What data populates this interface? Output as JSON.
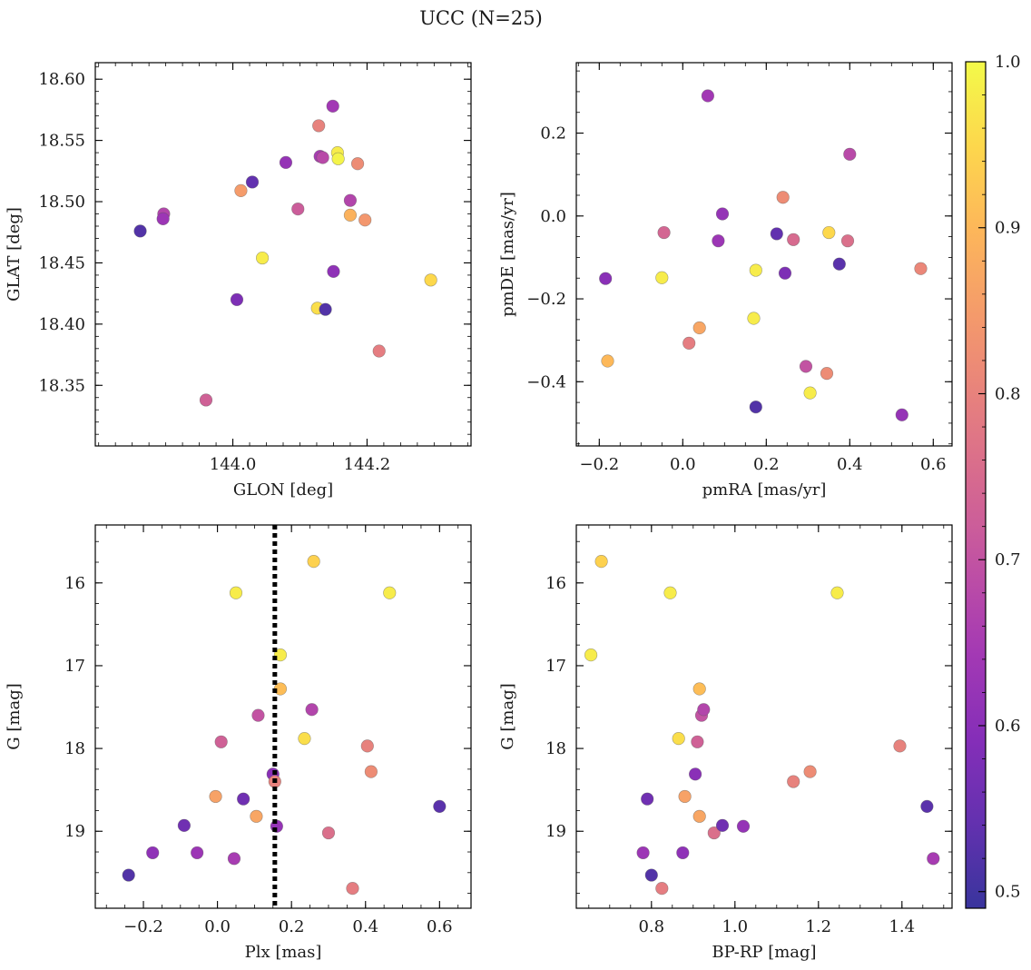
{
  "figure": {
    "title": "UCC (N=25)"
  },
  "colorbar": {
    "vmin": 0.49,
    "vmax": 1.0,
    "colormap": "plasma",
    "ticks": [
      0.5,
      0.6,
      0.7,
      0.8,
      0.9,
      1.0
    ],
    "tick_labels": [
      "0.5",
      "0.6",
      "0.7",
      "0.8",
      "0.9",
      "1.0"
    ]
  },
  "chart_data": [
    {
      "type": "scatter",
      "id": "glon-glat",
      "xlabel": "GLON [deg]",
      "ylabel": "GLAT [deg]",
      "xlim": [
        143.795,
        144.355
      ],
      "ylim": [
        18.3005,
        18.6135
      ],
      "x_invert": false,
      "y_invert": false,
      "xticks": [
        144.0,
        144.2
      ],
      "xtick_labels": [
        "144.0",
        "144.2"
      ],
      "x_minor_step": 0.025,
      "yticks": [
        18.35,
        18.4,
        18.45,
        18.5,
        18.55,
        18.6
      ],
      "ytick_labels": [
        "18.35",
        "18.40",
        "18.45",
        "18.50",
        "18.55",
        "18.60"
      ],
      "y_minor_step": 0.01,
      "vline": null,
      "points": [
        {
          "x": 143.862,
          "y": 18.476,
          "c": 0.52
        },
        {
          "x": 143.897,
          "y": 18.49,
          "c": 0.67
        },
        {
          "x": 143.896,
          "y": 18.486,
          "c": 0.63
        },
        {
          "x": 143.96,
          "y": 18.338,
          "c": 0.73
        },
        {
          "x": 144.006,
          "y": 18.42,
          "c": 0.58
        },
        {
          "x": 144.012,
          "y": 18.509,
          "c": 0.85
        },
        {
          "x": 144.029,
          "y": 18.516,
          "c": 0.54
        },
        {
          "x": 144.044,
          "y": 18.454,
          "c": 0.98
        },
        {
          "x": 144.079,
          "y": 18.532,
          "c": 0.62
        },
        {
          "x": 144.097,
          "y": 18.494,
          "c": 0.72
        },
        {
          "x": 144.128,
          "y": 18.562,
          "c": 0.8
        },
        {
          "x": 144.13,
          "y": 18.537,
          "c": 0.65
        },
        {
          "x": 144.134,
          "y": 18.536,
          "c": 0.68
        },
        {
          "x": 144.126,
          "y": 18.413,
          "c": 0.96
        },
        {
          "x": 144.138,
          "y": 18.412,
          "c": 0.52
        },
        {
          "x": 144.149,
          "y": 18.578,
          "c": 0.64
        },
        {
          "x": 144.15,
          "y": 18.443,
          "c": 0.61
        },
        {
          "x": 144.156,
          "y": 18.54,
          "c": 0.98
        },
        {
          "x": 144.157,
          "y": 18.535,
          "c": 0.99
        },
        {
          "x": 144.175,
          "y": 18.501,
          "c": 0.67
        },
        {
          "x": 144.175,
          "y": 18.489,
          "c": 0.89
        },
        {
          "x": 144.186,
          "y": 18.531,
          "c": 0.82
        },
        {
          "x": 144.197,
          "y": 18.485,
          "c": 0.84
        },
        {
          "x": 144.218,
          "y": 18.378,
          "c": 0.79
        },
        {
          "x": 144.295,
          "y": 18.436,
          "c": 0.95
        }
      ]
    },
    {
      "type": "scatter",
      "id": "pmra-pmde",
      "xlabel": "pmRA [mas/yr]",
      "ylabel": "pmDE [mas/yr]",
      "xlim": [
        -0.255,
        0.645
      ],
      "ylim": [
        -0.555,
        0.37
      ],
      "x_invert": false,
      "y_invert": false,
      "xticks": [
        -0.2,
        0.0,
        0.2,
        0.4,
        0.6
      ],
      "xtick_labels": [
        "−0.2",
        "0.0",
        "0.2",
        "0.4",
        "0.6"
      ],
      "x_minor_step": 0.05,
      "yticks": [
        -0.4,
        -0.2,
        0.0,
        0.2
      ],
      "ytick_labels": [
        "−0.4",
        "−0.2",
        "0.0",
        "0.2"
      ],
      "y_minor_step": 0.05,
      "vline": null,
      "points": [
        {
          "x": -0.185,
          "y": -0.151,
          "c": 0.6
        },
        {
          "x": -0.18,
          "y": -0.35,
          "c": 0.9
        },
        {
          "x": -0.05,
          "y": -0.149,
          "c": 0.98
        },
        {
          "x": -0.045,
          "y": -0.04,
          "c": 0.74
        },
        {
          "x": 0.015,
          "y": -0.307,
          "c": 0.79
        },
        {
          "x": 0.04,
          "y": -0.27,
          "c": 0.87
        },
        {
          "x": 0.06,
          "y": 0.29,
          "c": 0.64
        },
        {
          "x": 0.085,
          "y": -0.06,
          "c": 0.63
        },
        {
          "x": 0.095,
          "y": 0.005,
          "c": 0.62
        },
        {
          "x": 0.17,
          "y": -0.247,
          "c": 0.98
        },
        {
          "x": 0.175,
          "y": -0.131,
          "c": 0.98
        },
        {
          "x": 0.175,
          "y": -0.461,
          "c": 0.52
        },
        {
          "x": 0.225,
          "y": -0.043,
          "c": 0.54
        },
        {
          "x": 0.24,
          "y": 0.045,
          "c": 0.82
        },
        {
          "x": 0.245,
          "y": -0.138,
          "c": 0.58
        },
        {
          "x": 0.265,
          "y": -0.057,
          "c": 0.75
        },
        {
          "x": 0.295,
          "y": -0.363,
          "c": 0.7
        },
        {
          "x": 0.305,
          "y": -0.427,
          "c": 0.98
        },
        {
          "x": 0.345,
          "y": -0.38,
          "c": 0.82
        },
        {
          "x": 0.35,
          "y": -0.04,
          "c": 0.95
        },
        {
          "x": 0.375,
          "y": -0.116,
          "c": 0.53
        },
        {
          "x": 0.395,
          "y": -0.06,
          "c": 0.76
        },
        {
          "x": 0.4,
          "y": 0.149,
          "c": 0.68
        },
        {
          "x": 0.525,
          "y": -0.48,
          "c": 0.62
        },
        {
          "x": 0.57,
          "y": -0.127,
          "c": 0.81
        }
      ]
    },
    {
      "type": "scatter",
      "id": "plx-g",
      "xlabel": "Plx [mas]",
      "ylabel": "G [mag]",
      "xlim": [
        -0.33,
        0.685
      ],
      "ylim": [
        19.93,
        15.3
      ],
      "x_invert": false,
      "y_invert": true,
      "xticks": [
        -0.2,
        0.0,
        0.2,
        0.4,
        0.6
      ],
      "xtick_labels": [
        "−0.2",
        "0.0",
        "0.2",
        "0.4",
        "0.6"
      ],
      "x_minor_step": 0.05,
      "yticks": [
        16,
        17,
        18,
        19
      ],
      "ytick_labels": [
        "16",
        "17",
        "18",
        "19"
      ],
      "y_minor_step": 0.25,
      "vline": 0.155,
      "points": [
        {
          "x": -0.24,
          "y": 19.53,
          "c": 0.52
        },
        {
          "x": -0.175,
          "y": 19.26,
          "c": 0.61
        },
        {
          "x": -0.09,
          "y": 18.93,
          "c": 0.56
        },
        {
          "x": -0.055,
          "y": 19.26,
          "c": 0.63
        },
        {
          "x": -0.005,
          "y": 18.58,
          "c": 0.86
        },
        {
          "x": 0.01,
          "y": 17.92,
          "c": 0.73
        },
        {
          "x": 0.045,
          "y": 19.33,
          "c": 0.65
        },
        {
          "x": 0.05,
          "y": 16.12,
          "c": 0.98
        },
        {
          "x": 0.07,
          "y": 18.61,
          "c": 0.56
        },
        {
          "x": 0.105,
          "y": 18.82,
          "c": 0.87
        },
        {
          "x": 0.11,
          "y": 17.6,
          "c": 0.7
        },
        {
          "x": 0.15,
          "y": 18.31,
          "c": 0.6
        },
        {
          "x": 0.155,
          "y": 18.4,
          "c": 0.8
        },
        {
          "x": 0.16,
          "y": 18.94,
          "c": 0.62
        },
        {
          "x": 0.17,
          "y": 16.87,
          "c": 0.98
        },
        {
          "x": 0.17,
          "y": 17.28,
          "c": 0.91
        },
        {
          "x": 0.235,
          "y": 17.88,
          "c": 0.96
        },
        {
          "x": 0.255,
          "y": 17.53,
          "c": 0.67
        },
        {
          "x": 0.26,
          "y": 15.74,
          "c": 0.94
        },
        {
          "x": 0.3,
          "y": 19.02,
          "c": 0.76
        },
        {
          "x": 0.365,
          "y": 19.69,
          "c": 0.79
        },
        {
          "x": 0.405,
          "y": 17.97,
          "c": 0.8
        },
        {
          "x": 0.415,
          "y": 18.28,
          "c": 0.82
        },
        {
          "x": 0.465,
          "y": 16.12,
          "c": 0.98
        },
        {
          "x": 0.6,
          "y": 18.7,
          "c": 0.53
        }
      ]
    },
    {
      "type": "scatter",
      "id": "bprp-g",
      "xlabel": "BP-RP [mag]",
      "ylabel": "G [mag]",
      "xlim": [
        0.62,
        1.52
      ],
      "ylim": [
        19.93,
        15.3
      ],
      "x_invert": false,
      "y_invert": true,
      "xticks": [
        0.8,
        1.0,
        1.2,
        1.4
      ],
      "xtick_labels": [
        "0.8",
        "1.0",
        "1.2",
        "1.4"
      ],
      "x_minor_step": 0.05,
      "yticks": [
        16,
        17,
        18,
        19
      ],
      "ytick_labels": [
        "16",
        "17",
        "18",
        "19"
      ],
      "y_minor_step": 0.25,
      "vline": null,
      "points": [
        {
          "x": 0.655,
          "y": 16.87,
          "c": 0.98
        },
        {
          "x": 0.68,
          "y": 15.74,
          "c": 0.94
        },
        {
          "x": 0.78,
          "y": 19.26,
          "c": 0.63
        },
        {
          "x": 0.79,
          "y": 18.61,
          "c": 0.56
        },
        {
          "x": 0.8,
          "y": 19.53,
          "c": 0.52
        },
        {
          "x": 0.825,
          "y": 19.69,
          "c": 0.79
        },
        {
          "x": 0.845,
          "y": 16.12,
          "c": 0.98
        },
        {
          "x": 0.865,
          "y": 17.88,
          "c": 0.96
        },
        {
          "x": 0.875,
          "y": 19.26,
          "c": 0.61
        },
        {
          "x": 0.88,
          "y": 18.58,
          "c": 0.86
        },
        {
          "x": 0.905,
          "y": 18.31,
          "c": 0.6
        },
        {
          "x": 0.91,
          "y": 17.92,
          "c": 0.73
        },
        {
          "x": 0.915,
          "y": 17.28,
          "c": 0.91
        },
        {
          "x": 0.915,
          "y": 18.82,
          "c": 0.87
        },
        {
          "x": 0.92,
          "y": 17.6,
          "c": 0.7
        },
        {
          "x": 0.925,
          "y": 17.53,
          "c": 0.67
        },
        {
          "x": 0.95,
          "y": 19.02,
          "c": 0.76
        },
        {
          "x": 0.97,
          "y": 18.93,
          "c": 0.56
        },
        {
          "x": 1.02,
          "y": 18.94,
          "c": 0.62
        },
        {
          "x": 1.14,
          "y": 18.4,
          "c": 0.8
        },
        {
          "x": 1.18,
          "y": 18.28,
          "c": 0.82
        },
        {
          "x": 1.245,
          "y": 16.12,
          "c": 0.98
        },
        {
          "x": 1.395,
          "y": 17.97,
          "c": 0.8
        },
        {
          "x": 1.46,
          "y": 18.7,
          "c": 0.53
        },
        {
          "x": 1.475,
          "y": 19.33,
          "c": 0.65
        }
      ]
    }
  ]
}
